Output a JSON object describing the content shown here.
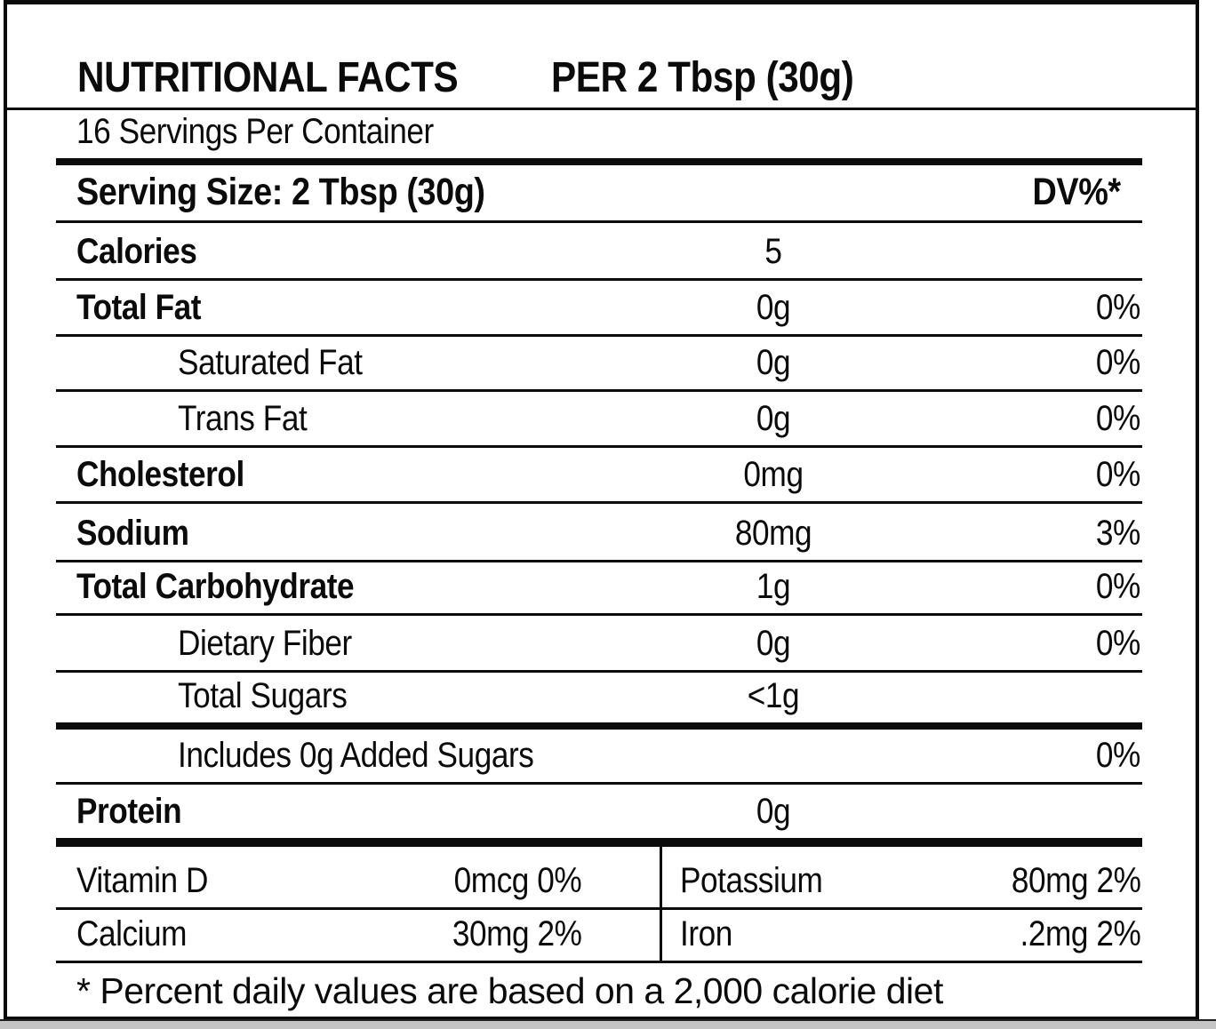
{
  "colors": {
    "ink": "#0b0b0b",
    "paper": "#ffffff",
    "scan_strip": "#c5c5c5"
  },
  "header": {
    "title": "NUTRITIONAL FACTS",
    "serving_basis": "PER 2 Tbsp (30g)"
  },
  "servings_per_container": "16 Servings Per Container",
  "serving_size": {
    "label": "Serving Size: 2 Tbsp (30g)",
    "dv_header": "DV%*"
  },
  "rows": [
    {
      "name": "Calories",
      "value": "5",
      "dv": ""
    },
    {
      "name": "Total Fat",
      "value": "0g",
      "dv": "0%"
    },
    {
      "name": "Saturated Fat",
      "value": "0g",
      "dv": "0%"
    },
    {
      "name": "Trans Fat",
      "value": "0g",
      "dv": "0%"
    },
    {
      "name": "Cholesterol",
      "value": "0mg",
      "dv": "0%"
    },
    {
      "name": "Sodium",
      "value": "80mg",
      "dv": "3%"
    },
    {
      "name": "Total Carbohydrate",
      "value": "1g",
      "dv": "0%"
    },
    {
      "name": "Dietary Fiber",
      "value": "0g",
      "dv": "0%"
    },
    {
      "name": "Total Sugars",
      "value": "<1g",
      "dv": ""
    },
    {
      "name": "Includes 0g Added Sugars",
      "value": "",
      "dv": "0%"
    },
    {
      "name": "Protein",
      "value": "0g",
      "dv": ""
    }
  ],
  "micronutrients": [
    {
      "left": {
        "name": "Vitamin D",
        "amount": "0mcg 0%"
      },
      "right": {
        "name": "Potassium",
        "amount": "80mg 2%"
      }
    },
    {
      "left": {
        "name": "Calcium",
        "amount": "30mg 2%"
      },
      "right": {
        "name": "Iron",
        "amount": ".2mg 2%"
      }
    }
  ],
  "footnote": "* Percent daily values are based on a 2,000 calorie diet"
}
